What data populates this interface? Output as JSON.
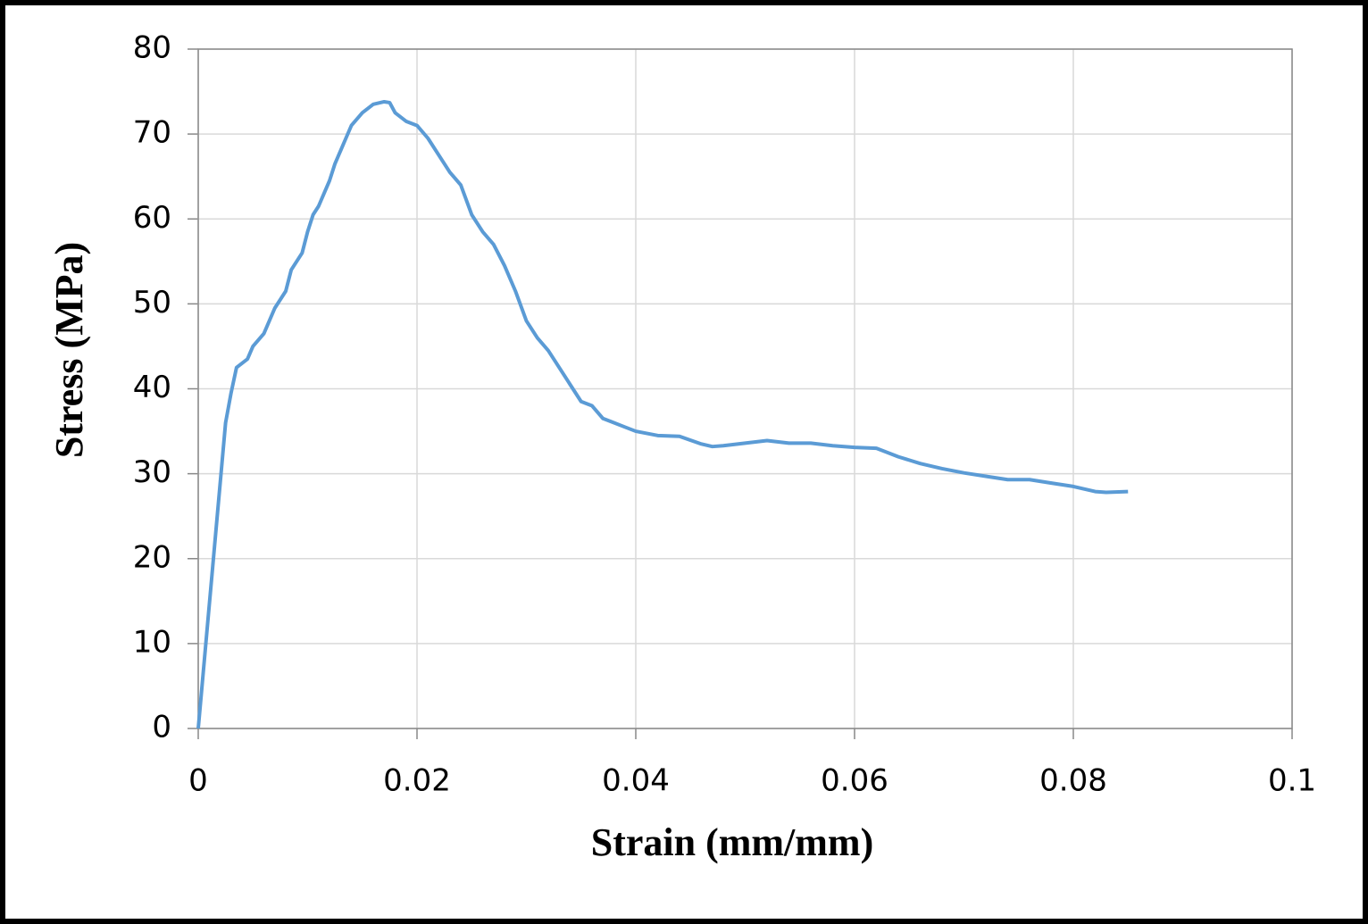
{
  "chart_data": {
    "type": "line",
    "x_label": "Strain (mm/mm)",
    "y_label": "Stress (MPa)",
    "x": [
      0,
      0.0025,
      0.003,
      0.0035,
      0.0045,
      0.005,
      0.006,
      0.007,
      0.0075,
      0.008,
      0.0085,
      0.009,
      0.0095,
      0.01,
      0.0105,
      0.011,
      0.0115,
      0.012,
      0.0125,
      0.013,
      0.0135,
      0.014,
      0.015,
      0.016,
      0.017,
      0.0175,
      0.018,
      0.019,
      0.02,
      0.021,
      0.022,
      0.023,
      0.024,
      0.025,
      0.026,
      0.027,
      0.028,
      0.029,
      0.03,
      0.031,
      0.032,
      0.033,
      0.034,
      0.035,
      0.036,
      0.037,
      0.038,
      0.039,
      0.04,
      0.042,
      0.044,
      0.046,
      0.047,
      0.048,
      0.05,
      0.052,
      0.054,
      0.056,
      0.058,
      0.06,
      0.062,
      0.064,
      0.066,
      0.068,
      0.07,
      0.072,
      0.074,
      0.076,
      0.078,
      0.08,
      0.082,
      0.083,
      0.085
    ],
    "series": [
      {
        "name": "Stress",
        "color": "#5b9bd5",
        "values": [
          0,
          36,
          39.5,
          42.5,
          43.5,
          45,
          46.5,
          49.5,
          50.5,
          51.5,
          54,
          55,
          56,
          58.5,
          60.5,
          61.5,
          63,
          64.5,
          66.5,
          68,
          69.5,
          71,
          72.5,
          73.5,
          73.8,
          73.7,
          72.5,
          71.5,
          71,
          69.5,
          67.5,
          65.5,
          64,
          60.5,
          58.5,
          57,
          54.5,
          51.5,
          48,
          46,
          44.5,
          42.5,
          40.5,
          38.5,
          38,
          36.5,
          36,
          35.5,
          35,
          34.5,
          34.4,
          33.5,
          33.2,
          33.3,
          33.6,
          33.9,
          33.6,
          33.6,
          33.3,
          33.1,
          33,
          32,
          31.2,
          30.6,
          30.1,
          29.7,
          29.3,
          29.3,
          28.9,
          28.5,
          27.9,
          27.8,
          27.9
        ]
      }
    ],
    "xlim": [
      0,
      0.1
    ],
    "xticks": [
      0,
      0.02,
      0.04,
      0.06,
      0.08,
      0.1
    ],
    "ylim": [
      0,
      80
    ],
    "yticks": [
      0,
      10,
      20,
      30,
      40,
      50,
      60,
      70,
      80
    ],
    "grid": true
  }
}
